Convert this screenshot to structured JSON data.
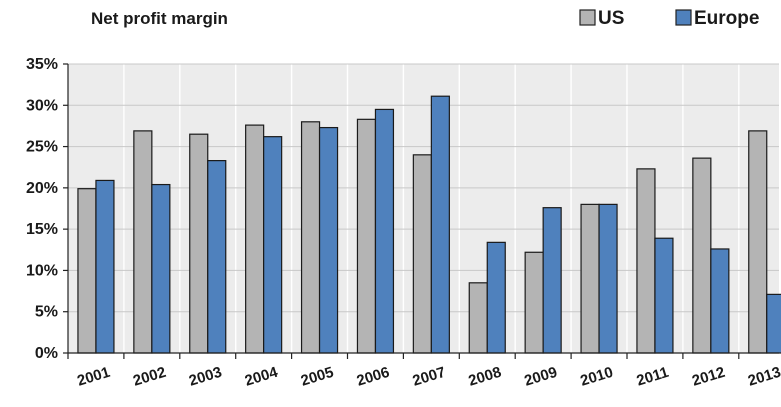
{
  "chart_data": {
    "type": "bar",
    "title": "Net profit margin",
    "xlabel": "",
    "ylabel": "",
    "categories": [
      "2001",
      "2002",
      "2003",
      "2004",
      "2005",
      "2006",
      "2007",
      "2008",
      "2009",
      "2010",
      "2011",
      "2012",
      "2013"
    ],
    "series": [
      {
        "name": "US",
        "color": "#b4b4b4",
        "values": [
          19.9,
          26.9,
          26.5,
          27.6,
          28.0,
          28.3,
          24.0,
          8.5,
          12.2,
          18.0,
          22.3,
          23.6,
          26.9
        ]
      },
      {
        "name": "Europe",
        "color": "#4f81bd",
        "values": [
          20.9,
          20.4,
          23.3,
          26.2,
          27.3,
          29.5,
          31.1,
          13.4,
          17.6,
          18.0,
          13.9,
          12.6,
          7.1
        ]
      }
    ],
    "ylim": [
      0,
      35
    ],
    "yticks": [
      "0%",
      "5%",
      "10%",
      "15%",
      "20%",
      "25%",
      "30%",
      "35%"
    ],
    "ytick_values": [
      0,
      5,
      10,
      15,
      20,
      25,
      30,
      35
    ],
    "legend": "top-right",
    "grid": true,
    "plot_background": "#ececec"
  }
}
